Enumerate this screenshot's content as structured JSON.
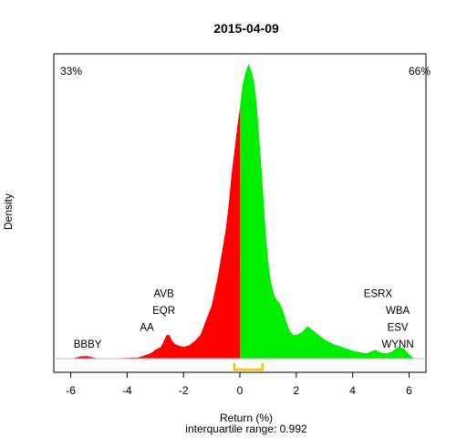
{
  "chart_data": {
    "type": "area",
    "title": "2015-04-09",
    "xlabel": "Return (%)",
    "ylabel": "Density",
    "subtitle": "interquartile range: 0.992",
    "xlim": [
      -6.6,
      6.6
    ],
    "ylim": [
      0,
      1.0
    ],
    "xticks": [
      "-6",
      "-4",
      "-2",
      "0",
      "2",
      "4",
      "6"
    ],
    "percent_negative": "33%",
    "percent_positive": "66%",
    "colors": {
      "negative": "#ff0000",
      "positive": "#00ee00",
      "iqr": "#ffc000",
      "neg_text": "#ff0000",
      "pos_text": "#00aa00"
    },
    "iqr_range": [
      -0.2,
      0.8
    ],
    "density": {
      "x": [
        -6.6,
        -6.0,
        -5.8,
        -5.6,
        -5.4,
        -5.2,
        -5.0,
        -4.6,
        -4.2,
        -3.8,
        -3.6,
        -3.5,
        -3.4,
        -3.3,
        -3.2,
        -3.1,
        -3.0,
        -2.9,
        -2.8,
        -2.7,
        -2.6,
        -2.5,
        -2.4,
        -2.3,
        -2.2,
        -2.0,
        -1.8,
        -1.6,
        -1.4,
        -1.2,
        -1.0,
        -0.8,
        -0.6,
        -0.5,
        -0.4,
        -0.3,
        -0.2,
        -0.1,
        0.0,
        0.1,
        0.2,
        0.3,
        0.4,
        0.5,
        0.6,
        0.7,
        0.8,
        0.9,
        1.0,
        1.1,
        1.2,
        1.3,
        1.4,
        1.5,
        1.6,
        1.7,
        1.8,
        1.9,
        2.0,
        2.2,
        2.4,
        2.6,
        2.8,
        3.0,
        3.3,
        3.6,
        3.9,
        4.2,
        4.5,
        4.8,
        5.0,
        5.2,
        5.4,
        5.6,
        5.8,
        5.9,
        6.0,
        6.1,
        6.2,
        6.6
      ],
      "y": [
        0.0,
        0.0,
        0.004,
        0.008,
        0.008,
        0.004,
        0.0,
        0.0,
        0.002,
        0.003,
        0.004,
        0.007,
        0.01,
        0.013,
        0.017,
        0.022,
        0.03,
        0.035,
        0.04,
        0.06,
        0.08,
        0.08,
        0.06,
        0.05,
        0.045,
        0.04,
        0.045,
        0.06,
        0.08,
        0.13,
        0.18,
        0.27,
        0.38,
        0.44,
        0.52,
        0.62,
        0.7,
        0.78,
        0.85,
        0.93,
        0.97,
        1.0,
        0.98,
        0.94,
        0.86,
        0.73,
        0.6,
        0.45,
        0.33,
        0.26,
        0.22,
        0.2,
        0.19,
        0.17,
        0.14,
        0.11,
        0.09,
        0.08,
        0.08,
        0.09,
        0.11,
        0.095,
        0.08,
        0.065,
        0.05,
        0.04,
        0.03,
        0.022,
        0.018,
        0.03,
        0.02,
        0.018,
        0.024,
        0.04,
        0.035,
        0.025,
        0.015,
        0.006,
        0.0,
        0.0
      ]
    },
    "annotations": {
      "left": [
        {
          "text": "AVB",
          "x": -2.7,
          "row": 4
        },
        {
          "text": "EQR",
          "x": -2.7,
          "row": 3
        },
        {
          "text": "AA",
          "x": -3.3,
          "row": 2
        },
        {
          "text": "BBBY",
          "x": -5.4,
          "row": 1
        }
      ],
      "right": [
        {
          "text": "ESRX",
          "x": 4.9,
          "row": 4
        },
        {
          "text": "WBA",
          "x": 5.6,
          "row": 3
        },
        {
          "text": "ESV",
          "x": 5.6,
          "row": 2
        },
        {
          "text": "WYNN",
          "x": 5.6,
          "row": 1
        }
      ]
    }
  }
}
